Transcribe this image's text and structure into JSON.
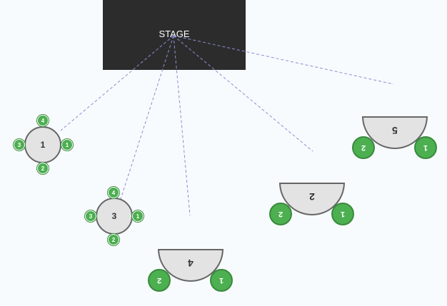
{
  "stage": {
    "label": "STAGE"
  },
  "round_tables": [
    {
      "label": "1",
      "seats": {
        "top": "4",
        "right": "1",
        "bottom": "2",
        "left": "3"
      }
    },
    {
      "label": "3",
      "seats": {
        "top": "4",
        "right": "1",
        "bottom": "2",
        "left": "3"
      }
    }
  ],
  "half_tables": [
    {
      "label": "5",
      "seats": {
        "left": "2",
        "right": "1"
      }
    },
    {
      "label": "2",
      "seats": {
        "left": "2",
        "right": "1"
      }
    },
    {
      "label": "4",
      "seats": {
        "left": "2",
        "right": "1"
      }
    }
  ],
  "colors": {
    "stage": "#2c2c2c",
    "seat": "#4caf50",
    "table": "#e3e3e3",
    "sightline": "#8a8fd6"
  }
}
